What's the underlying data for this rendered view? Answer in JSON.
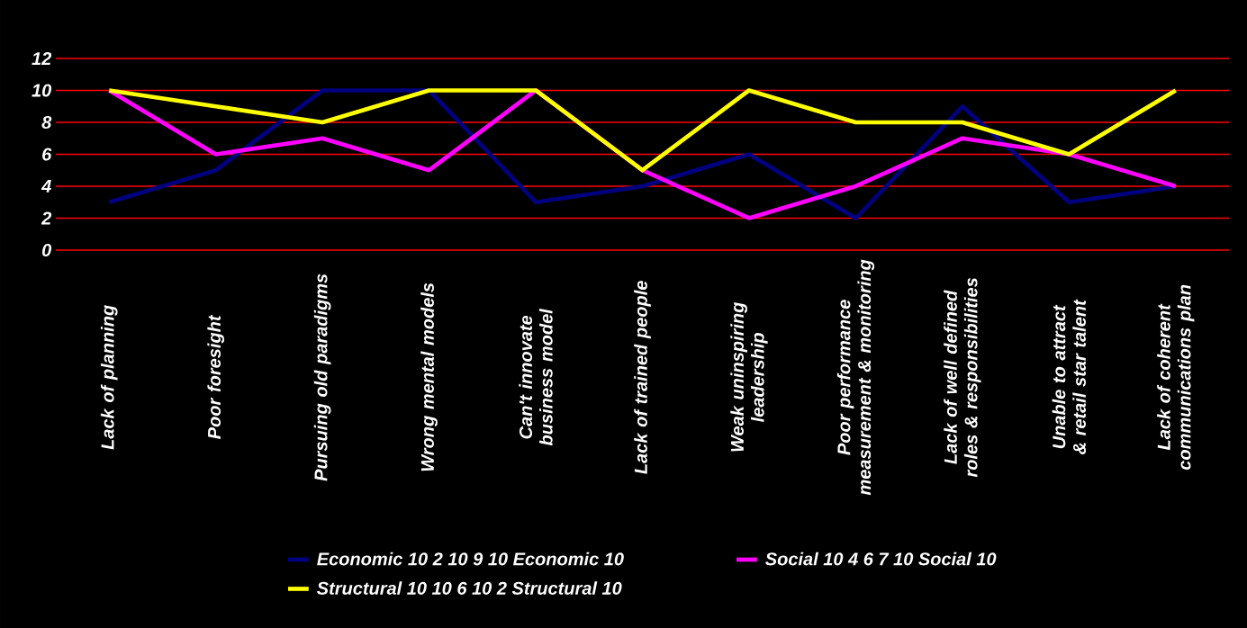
{
  "chart_data": {
    "type": "line",
    "categories": [
      "Lack of planning",
      "Poor foresight",
      "Pursuing old paradigms",
      "Wrong mental models",
      "Can't innovate business model",
      "Lack of trained people",
      "Weak uninspiring leadership",
      "Poor performance measurement & monitoring",
      "Lack of well defined roles & responsibilities",
      "Unable to attract & retail star talent",
      "Lack of coherent communications plan"
    ],
    "series": [
      {
        "name": "Economic 10 2 10 9 10 Economic 10",
        "color": "#000080",
        "values": [
          3,
          5,
          10,
          10,
          3,
          4,
          6,
          2,
          9,
          3,
          4
        ]
      },
      {
        "name": "Social 10 4 6 7 10 Social 10",
        "color": "#ff00ff",
        "values": [
          10,
          6,
          7,
          5,
          10,
          5,
          2,
          4,
          7,
          6,
          4
        ]
      },
      {
        "name": "Structural 10 10 6 10 2 Structural 10",
        "color": "#ffff00",
        "values": [
          10,
          9,
          8,
          10,
          10,
          5,
          10,
          8,
          8,
          6,
          10
        ]
      }
    ],
    "ylim": [
      0,
      12
    ],
    "yticks": [
      0,
      2,
      4,
      6,
      8,
      10,
      12
    ],
    "grid": "y",
    "legend": "bottom",
    "marker": "none",
    "line_style": "solid"
  }
}
